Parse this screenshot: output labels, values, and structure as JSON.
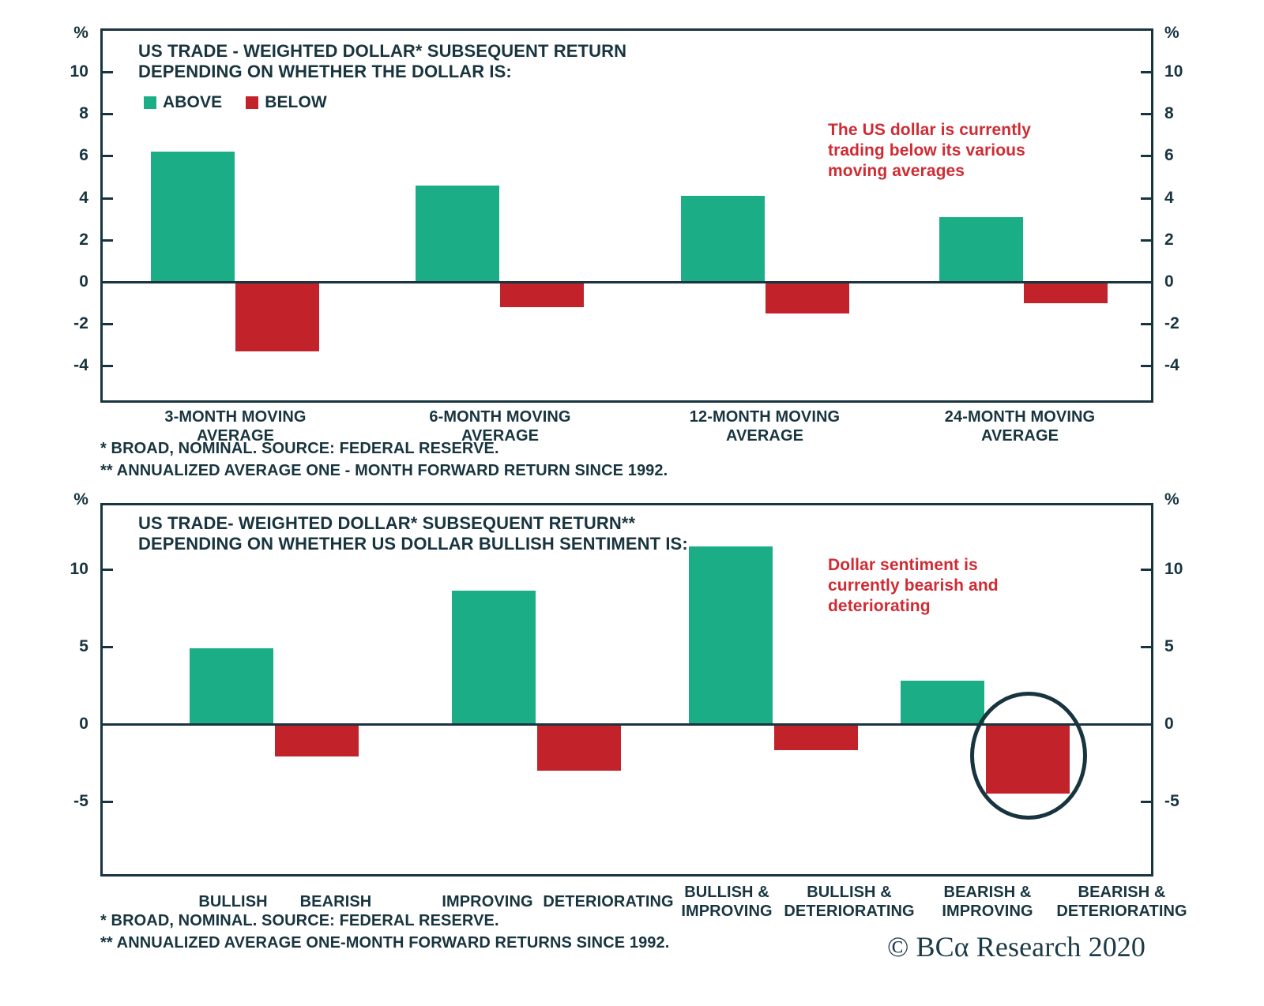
{
  "colors": {
    "green": "#1bae86",
    "red": "#c2222a",
    "dark": "#18353f",
    "annotation_red": "#cf2b33"
  },
  "logo": {
    "text": "© BCα Research 2020"
  },
  "chart_data": [
    {
      "type": "bar",
      "title_lines": [
        "US TRADE - WEIGHTED DOLLAR* SUBSEQUENT RETURN",
        "DEPENDING ON WHETHER THE DOLLAR IS:"
      ],
      "legend": [
        {
          "label": "ABOVE",
          "color": "#1bae86"
        },
        {
          "label": "BELOW",
          "color": "#c2222a"
        }
      ],
      "y_unit": "%",
      "yticks": [
        10,
        8,
        6,
        4,
        2,
        0,
        -2,
        -4
      ],
      "ylim": [
        -5.75,
        12.1
      ],
      "grid": false,
      "legend_position": "top-left",
      "categories": [
        "3-MONTH MOVING\nAVERAGE",
        "6-MONTH MOVING\nAVERAGE",
        "12-MONTH MOVING\nAVERAGE",
        "24-MONTH MOVING\nAVERAGE"
      ],
      "series": [
        {
          "name": "ABOVE",
          "values": [
            6.2,
            4.6,
            4.1,
            3.1
          ]
        },
        {
          "name": "BELOW",
          "values": [
            -3.3,
            -1.2,
            -1.5,
            -1.0
          ]
        }
      ],
      "annotation": "The US dollar is currently\ntrading below its various\nmoving averages",
      "footnotes": [
        "*  BROAD, NOMINAL. SOURCE: FEDERAL RESERVE.",
        "** ANNUALIZED AVERAGE ONE - MONTH FORWARD  RETURN SINCE 1992."
      ]
    },
    {
      "type": "bar",
      "title_lines": [
        "US TRADE- WEIGHTED DOLLAR* SUBSEQUENT RETURN**",
        "DEPENDING ON WHETHER US DOLLAR BULLISH SENTIMENT IS:"
      ],
      "y_unit": "%",
      "yticks": [
        10,
        5,
        0,
        -5
      ],
      "ylim": [
        -9.85,
        14.3
      ],
      "grid": false,
      "categories": [
        "BULLISH",
        "BEARISH",
        "IMPROVING",
        "DETERIORATING",
        "BULLISH &\nIMPROVING",
        "BULLISH &\nDETERIORATING",
        "BEARISH &\nIMPROVING",
        "BEARISH &\nDETERIORATING"
      ],
      "values": [
        4.9,
        -2.1,
        8.6,
        -3.0,
        11.5,
        -1.7,
        2.8,
        -4.5
      ],
      "highlight": {
        "category": "BEARISH & DETERIORATING",
        "shape": "circle"
      },
      "annotation": "Dollar sentiment is\ncurrently bearish and\ndeteriorating",
      "footnotes": [
        "*  BROAD, NOMINAL. SOURCE: FEDERAL RESERVE.",
        "** ANNUALIZED AVERAGE ONE-MONTH FORWARD RETURNS SINCE 1992."
      ]
    }
  ]
}
